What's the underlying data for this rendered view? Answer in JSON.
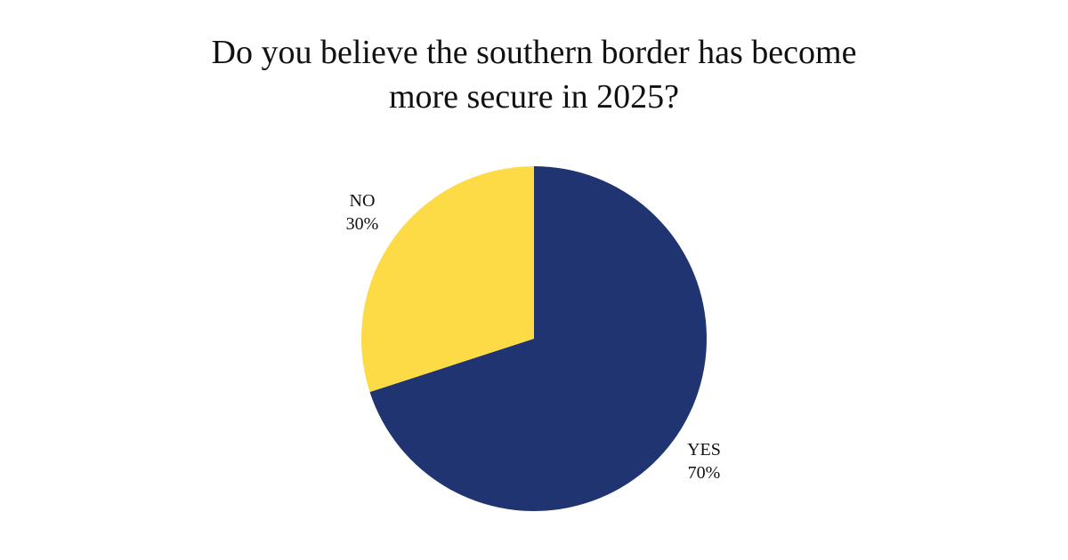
{
  "chart_data": {
    "type": "pie",
    "title": "Do you believe the southern border has become more secure in 2025?",
    "title_lines": [
      "Do you believe the southern border has become",
      "more secure in 2025?"
    ],
    "slices": [
      {
        "label": "YES",
        "value": 70,
        "display": "70%",
        "color": "#1F3470"
      },
      {
        "label": "NO",
        "value": 30,
        "display": "30%",
        "color": "#FCDB47"
      }
    ],
    "start_angle_deg": 0,
    "direction": "clockwise",
    "legend": "none"
  }
}
